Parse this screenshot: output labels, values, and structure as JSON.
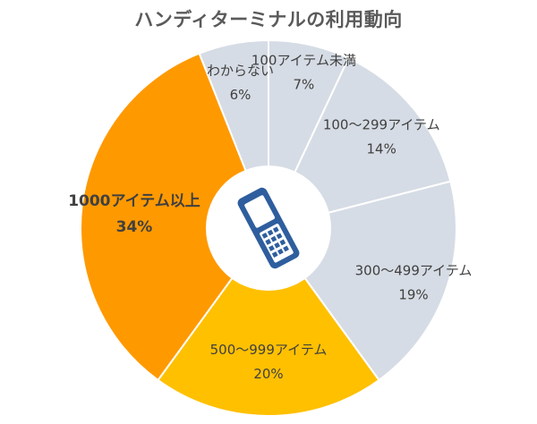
{
  "chart_data": {
    "type": "pie",
    "title": "ハンディターミナルの利用動向",
    "donut": true,
    "center_icon": "handheld-terminal-icon",
    "slices": [
      {
        "label": "100アイテム未満",
        "value": 7,
        "value_label": "7%",
        "color": "#d6dce5"
      },
      {
        "label": "100〜299アイテム",
        "value": 14,
        "value_label": "14%",
        "color": "#d6dce5"
      },
      {
        "label": "300〜499アイテム",
        "value": 19,
        "value_label": "19%",
        "color": "#d6dce5"
      },
      {
        "label": "500〜999アイテム",
        "value": 20,
        "value_label": "20%",
        "color": "#ffc000"
      },
      {
        "label": "1000アイテム以上",
        "value": 34,
        "value_label": "34%",
        "color": "#ff9900",
        "emphasis": true
      },
      {
        "label": "わからない",
        "value": 6,
        "value_label": "6%",
        "color": "#d6dce5"
      }
    ],
    "start_angle_deg": 0,
    "direction": "clockwise",
    "legend": "none"
  },
  "colors": {
    "title": "#5a5a5a",
    "label": "#404040",
    "separator": "#ffffff",
    "icon": "#2e5e9e"
  }
}
